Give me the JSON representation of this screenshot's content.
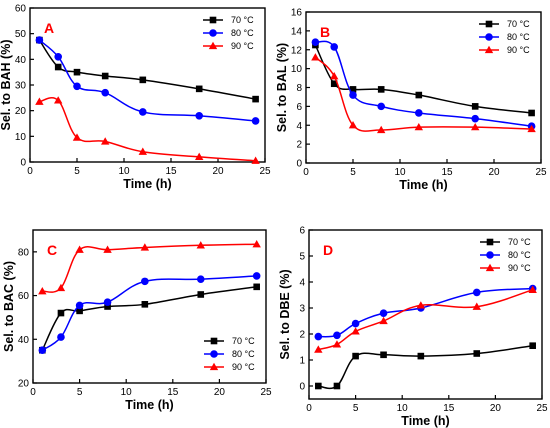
{
  "chart_data": [
    {
      "type": "line",
      "panel_label": "A",
      "xlabel": "Time (h)",
      "ylabel": "Sel. to BAH (%)",
      "xlim": [
        0,
        25
      ],
      "ylim": [
        0,
        60
      ],
      "xticks": [
        "0",
        "5",
        "10",
        "15",
        "20",
        "25"
      ],
      "yticks": [
        "0",
        "10",
        "20",
        "30",
        "40",
        "50",
        "60"
      ],
      "legend_position": "top-right",
      "series": [
        {
          "name": "70 °C",
          "color": "#000000",
          "marker": "square",
          "x": [
            1,
            3,
            5,
            8,
            12,
            18,
            24
          ],
          "y": [
            47.5,
            37,
            35,
            33.5,
            32,
            28.5,
            24.5
          ]
        },
        {
          "name": "80 °C",
          "color": "#0000ff",
          "marker": "circle",
          "x": [
            1,
            3,
            5,
            8,
            12,
            18,
            24
          ],
          "y": [
            47.5,
            41,
            29.5,
            27,
            19.5,
            18,
            16
          ]
        },
        {
          "name": "90 °C",
          "color": "#ff0000",
          "marker": "triangle",
          "x": [
            1,
            3,
            5,
            8,
            12,
            18,
            24
          ],
          "y": [
            23.5,
            24,
            9.5,
            8,
            4,
            2,
            0.5
          ]
        }
      ]
    },
    {
      "type": "line",
      "panel_label": "B",
      "xlabel": "Time (h)",
      "ylabel": "Sel. to BAL (%)",
      "xlim": [
        0,
        25
      ],
      "ylim": [
        0,
        16
      ],
      "xticks": [
        "0",
        "5",
        "10",
        "15",
        "20",
        "25"
      ],
      "yticks": [
        "0",
        "2",
        "4",
        "6",
        "8",
        "10",
        "12",
        "14",
        "16"
      ],
      "legend_position": "top-right",
      "series": [
        {
          "name": "70 °C",
          "color": "#000000",
          "marker": "square",
          "x": [
            1,
            3,
            5,
            8,
            12,
            18,
            24
          ],
          "y": [
            12.5,
            8.4,
            7.8,
            7.8,
            7.2,
            6.0,
            5.3
          ]
        },
        {
          "name": "80 °C",
          "color": "#0000ff",
          "marker": "circle",
          "x": [
            1,
            3,
            5,
            8,
            12,
            18,
            24
          ],
          "y": [
            12.8,
            12.3,
            7.2,
            6.0,
            5.3,
            4.7,
            3.9
          ]
        },
        {
          "name": "90 °C",
          "color": "#ff0000",
          "marker": "triangle",
          "x": [
            1,
            3,
            5,
            8,
            12,
            18,
            24
          ],
          "y": [
            11.2,
            9.2,
            4.0,
            3.5,
            3.8,
            3.8,
            3.6
          ]
        }
      ]
    },
    {
      "type": "line",
      "panel_label": "C",
      "xlabel": "Time (h)",
      "ylabel": "Sel. to BAC (%)",
      "xlim": [
        0,
        25
      ],
      "ylim": [
        20,
        90
      ],
      "xticks": [
        "0",
        "5",
        "10",
        "15",
        "20",
        "25"
      ],
      "yticks": [
        "20",
        "40",
        "60",
        "80"
      ],
      "legend_position": "bottom-right",
      "series": [
        {
          "name": "70 °C",
          "color": "#000000",
          "marker": "square",
          "x": [
            1,
            3,
            5,
            8,
            12,
            18,
            24
          ],
          "y": [
            35,
            52,
            53,
            55,
            56,
            60.5,
            64
          ]
        },
        {
          "name": "80 °C",
          "color": "#0000ff",
          "marker": "circle",
          "x": [
            1,
            3,
            5,
            8,
            12,
            18,
            24
          ],
          "y": [
            35,
            41,
            55.5,
            57,
            66.5,
            67.5,
            69
          ]
        },
        {
          "name": "90 °C",
          "color": "#ff0000",
          "marker": "triangle",
          "x": [
            1,
            3,
            5,
            8,
            12,
            18,
            24
          ],
          "y": [
            62,
            63.5,
            81,
            81,
            82,
            83,
            83.5
          ]
        }
      ]
    },
    {
      "type": "line",
      "panel_label": "D",
      "xlabel": "Time (h)",
      "ylabel": "Sel. to DBE (%)",
      "xlim": [
        0,
        25
      ],
      "ylim": [
        -0.5,
        6
      ],
      "xticks": [
        "0",
        "5",
        "10",
        "15",
        "20",
        "25"
      ],
      "yticks": [
        "0",
        "1",
        "2",
        "3",
        "4",
        "5",
        "6"
      ],
      "legend_position": "top-right",
      "series": [
        {
          "name": "70 °C",
          "color": "#000000",
          "marker": "square",
          "x": [
            1,
            3,
            5,
            8,
            12,
            18,
            24
          ],
          "y": [
            0.0,
            0.0,
            1.15,
            1.2,
            1.15,
            1.25,
            1.55
          ]
        },
        {
          "name": "80 °C",
          "color": "#0000ff",
          "marker": "circle",
          "x": [
            1,
            3,
            5,
            8,
            12,
            18,
            24
          ],
          "y": [
            1.9,
            1.95,
            2.4,
            2.8,
            3.0,
            3.6,
            3.75
          ]
        },
        {
          "name": "90 °C",
          "color": "#ff0000",
          "marker": "triangle",
          "x": [
            1,
            3,
            5,
            8,
            12,
            18,
            24
          ],
          "y": [
            1.4,
            1.6,
            2.1,
            2.5,
            3.1,
            3.05,
            3.7
          ]
        }
      ]
    }
  ]
}
